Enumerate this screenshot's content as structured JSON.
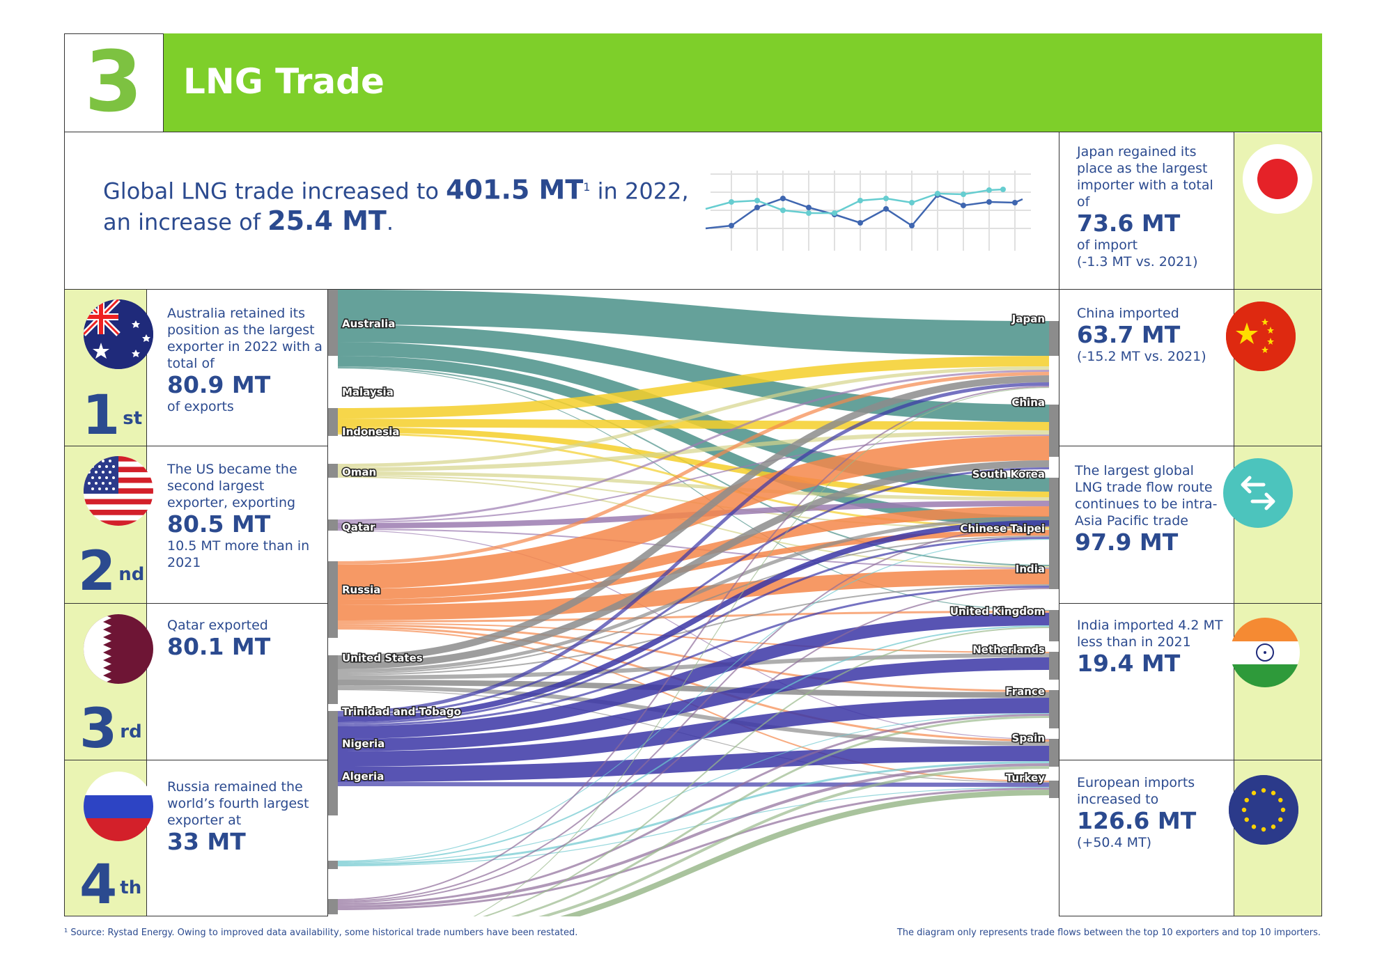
{
  "header": {
    "number": "3",
    "title": "LNG Trade"
  },
  "headline": {
    "pre": "Global LNG trade increased to ",
    "amount": "401.5 MT",
    "sup": "1",
    "post": " in 2022,",
    "line2_pre": "an increase of ",
    "line2_amount": "25.4 MT",
    "line2_post": "."
  },
  "exporters": [
    {
      "rank": "1",
      "suffix": "st",
      "text": "Australia retained its position as the largest exporter in 2022 with a total of",
      "amount": "80.9 MT",
      "after": "of exports",
      "flag_icon": "australia-flag-icon"
    },
    {
      "rank": "2",
      "suffix": "nd",
      "text": "The US became the second largest exporter, exporting",
      "amount": "80.5 MT",
      "after": "10.5 MT more than in 2021",
      "flag_icon": "us-flag-icon"
    },
    {
      "rank": "3",
      "suffix": "rd",
      "text": "Qatar exported",
      "amount": "80.1 MT",
      "after": "",
      "flag_icon": "qatar-flag-icon"
    },
    {
      "rank": "4",
      "suffix": "th",
      "text": "Russia remained the world’s fourth largest exporter at",
      "amount": "33 MT",
      "after": "",
      "flag_icon": "russia-flag-icon"
    }
  ],
  "importers": [
    {
      "text": "Japan regained its place as  the largest importer with a total of",
      "amount": "73.6 MT",
      "after": "of import",
      "after2": "(-1.3 MT vs. 2021)",
      "icon": "japan-flag-icon"
    },
    {
      "text": "China imported",
      "amount": "63.7 MT",
      "after": "(-15.2 MT vs. 2021)",
      "after2": "",
      "icon": "china-flag-icon"
    },
    {
      "text": "The largest global LNG trade flow route continues to be intra-Asia Pacific trade",
      "amount": "97.9 MT",
      "after": "",
      "after2": "",
      "icon": "arrows-exchange-icon"
    },
    {
      "text": "India imported 4.2 MT less than in 2021",
      "amount": "19.4 MT",
      "after": "",
      "after2": "",
      "icon": "india-flag-icon"
    },
    {
      "text": "European imports increased to",
      "amount": "126.6 MT",
      "after": "(+50.4 MT)",
      "after2": "",
      "icon": "eu-flag-icon"
    }
  ],
  "sankey": {
    "exporters": [
      "Australia",
      "Malaysia",
      "Indonesia",
      "Oman",
      "Qatar",
      "Russia",
      "United States",
      "Trinidad and Tobago",
      "Nigeria",
      "Algeria"
    ],
    "importers": [
      "Japan",
      "China",
      "South Korea",
      "Chinese Taipei",
      "India",
      "United Kingdom",
      "Netherlands",
      "France",
      "Spain",
      "Turkey"
    ],
    "colors": {
      "Australia": "#4a9088",
      "Malaysia": "#f4cf2a",
      "Indonesia": "#d6d48a",
      "Oman": "#9b7bb0",
      "Qatar": "#f5874a",
      "Russia": "#8c8c8c",
      "United States": "#3b36a6",
      "Trinidad and Tobago": "#6cc8cf",
      "Nigeria": "#8e6c9a",
      "Algeria": "#9ab98c"
    }
  },
  "footnotes": {
    "left": "¹ Source: Rystad Energy. Owing to improved data availability, some historical trade numbers have been restated.",
    "right": "The diagram only represents trade flows between the top 10 exporters and top 10 importers."
  }
}
